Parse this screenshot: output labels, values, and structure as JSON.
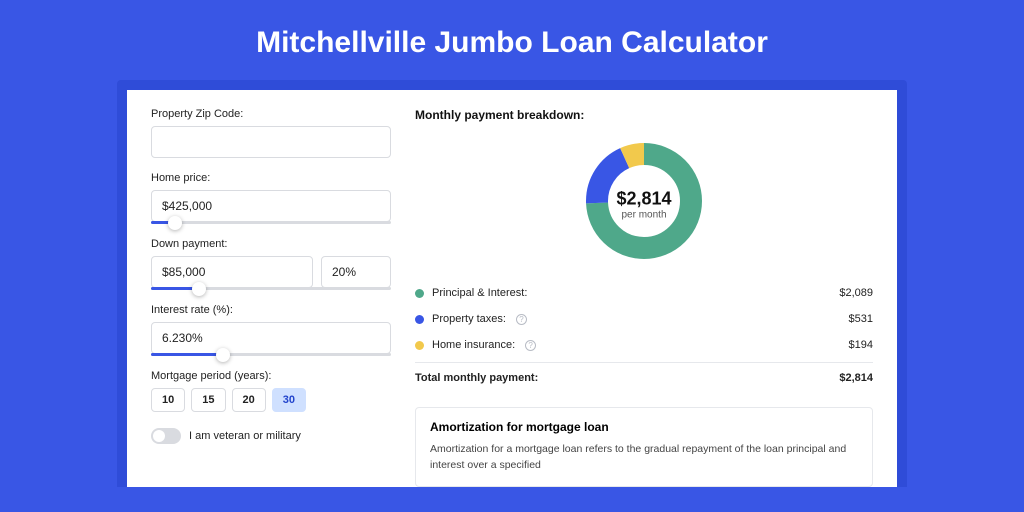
{
  "page": {
    "title": "Mitchellville Jumbo Loan Calculator",
    "background_color": "#3956e5",
    "card_border_color": "#2f4cd8"
  },
  "form": {
    "zip": {
      "label": "Property Zip Code:",
      "value": ""
    },
    "home_price": {
      "label": "Home price:",
      "value": "$425,000",
      "slider_pct": 10
    },
    "down_payment": {
      "label": "Down payment:",
      "amount": "$85,000",
      "percent": "20%",
      "slider_pct": 20
    },
    "interest": {
      "label": "Interest rate (%):",
      "value": "6.230%",
      "slider_pct": 30
    },
    "period": {
      "label": "Mortgage period (years):",
      "options": [
        "10",
        "15",
        "20",
        "30"
      ],
      "selected_index": 3
    },
    "veteran": {
      "label": "I am veteran or military",
      "checked": false
    }
  },
  "breakdown": {
    "title": "Monthly payment breakdown:",
    "donut": {
      "amount": "$2,814",
      "sub": "per month",
      "slices": [
        {
          "key": "pi",
          "pct": 74.2,
          "color": "#4fa88a"
        },
        {
          "key": "tax",
          "pct": 18.9,
          "color": "#3956e5"
        },
        {
          "key": "ins",
          "pct": 6.9,
          "color": "#f2c94c"
        }
      ],
      "radius": 58,
      "stroke": 22
    },
    "rows": [
      {
        "label": "Principal & Interest:",
        "value": "$2,089",
        "color": "#4fa88a",
        "info": false
      },
      {
        "label": "Property taxes:",
        "value": "$531",
        "color": "#3956e5",
        "info": true
      },
      {
        "label": "Home insurance:",
        "value": "$194",
        "color": "#f2c94c",
        "info": true
      }
    ],
    "total": {
      "label": "Total monthly payment:",
      "value": "$2,814"
    }
  },
  "amortization": {
    "title": "Amortization for mortgage loan",
    "text": "Amortization for a mortgage loan refers to the gradual repayment of the loan principal and interest over a specified"
  }
}
